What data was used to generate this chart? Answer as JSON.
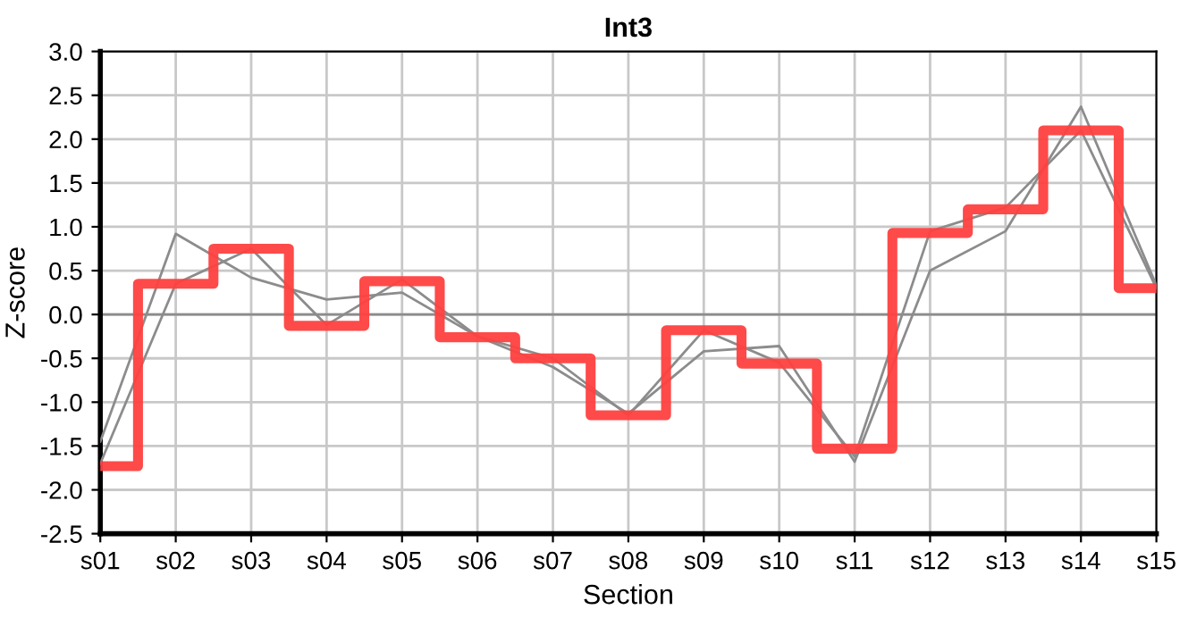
{
  "chart_data": {
    "type": "step",
    "title": "Int3",
    "xlabel": "Section",
    "ylabel": "Z-score",
    "categories": [
      "s01",
      "s02",
      "s03",
      "s04",
      "s05",
      "s06",
      "s07",
      "s08",
      "s09",
      "s10",
      "s11",
      "s12",
      "s13",
      "s14",
      "s15"
    ],
    "series": [
      {
        "type": "line",
        "color": "#8c8c8c",
        "values": [
          -1.45,
          0.92,
          0.42,
          0.17,
          0.25,
          -0.25,
          -0.6,
          -1.13,
          -0.42,
          -0.36,
          -1.68,
          0.5,
          0.95,
          2.37,
          0.33
        ]
      },
      {
        "type": "line",
        "color": "#8c8c8c",
        "values": [
          -1.7,
          0.35,
          0.75,
          -0.12,
          0.4,
          -0.25,
          -0.5,
          -1.15,
          -0.18,
          -0.55,
          -1.62,
          0.95,
          1.22,
          2.1,
          0.3
        ]
      },
      {
        "color": "#ff4040",
        "values": [
          -1.73,
          0.35,
          0.75,
          -0.13,
          0.38,
          -0.26,
          -0.5,
          -1.15,
          -0.18,
          -0.56,
          -1.53,
          0.93,
          1.2,
          2.1,
          0.3
        ]
      }
    ],
    "ylim": [
      -2.5,
      3.0
    ],
    "yticks": [
      {
        "value": -2.5,
        "label": "-2.5"
      },
      {
        "value": -2.0,
        "label": "-2.0"
      },
      {
        "value": -1.5,
        "label": "-1.5"
      },
      {
        "value": -1.0,
        "label": "-1.0"
      },
      {
        "value": -0.5,
        "label": "-0.5"
      },
      {
        "value": 0.0,
        "label": "0.0"
      },
      {
        "value": 0.5,
        "label": "0.5"
      },
      {
        "value": 1.0,
        "label": "1.0"
      },
      {
        "value": 1.5,
        "label": "1.5"
      },
      {
        "value": 2.0,
        "label": "2.0"
      },
      {
        "value": 2.5,
        "label": "2.5"
      },
      {
        "value": 3.0,
        "label": "3.0"
      }
    ],
    "ref_lines": [
      {
        "axis": "y",
        "value": 0,
        "color": "#8c8c8c"
      }
    ],
    "grid": true,
    "legend": false,
    "marker": "none",
    "line_style": "solid"
  }
}
